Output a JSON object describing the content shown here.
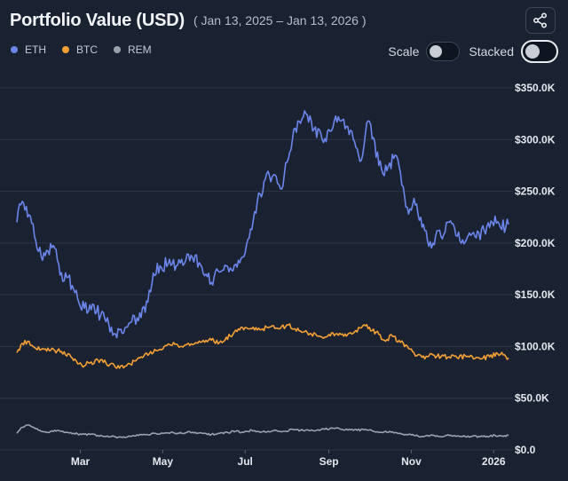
{
  "header": {
    "title": "Portfolio Value (USD)",
    "date_range": "( Jan 13, 2025 – Jan 13, 2026 )"
  },
  "share_icon": "share-icon",
  "legend": [
    {
      "label": "ETH",
      "color": "#6b86ea"
    },
    {
      "label": "BTC",
      "color": "#f5a035"
    },
    {
      "label": "REM",
      "color": "#9aa1ad"
    }
  ],
  "controls": {
    "scale_label": "Scale",
    "stacked_label": "Stacked"
  },
  "chart_data": {
    "type": "line",
    "title": "Portfolio Value (USD)",
    "xlabel": "",
    "ylabel": "",
    "x_range": [
      "2025-01-13",
      "2026-01-13"
    ],
    "ylim": [
      0,
      350000
    ],
    "y_ticks": [
      {
        "value": 0,
        "label": "$0.0"
      },
      {
        "value": 50000,
        "label": "$50.0K"
      },
      {
        "value": 100000,
        "label": "$100.0K"
      },
      {
        "value": 150000,
        "label": "$150.0K"
      },
      {
        "value": 200000,
        "label": "$200.0K"
      },
      {
        "value": 250000,
        "label": "$250.0K"
      },
      {
        "value": 300000,
        "label": "$300.0K"
      },
      {
        "value": 350000,
        "label": "$350.0K"
      }
    ],
    "x_ticks": [
      {
        "value": 47,
        "label": "Mar"
      },
      {
        "value": 108,
        "label": "May"
      },
      {
        "value": 169,
        "label": "Jul"
      },
      {
        "value": 231,
        "label": "Sep"
      },
      {
        "value": 292,
        "label": "Nov"
      },
      {
        "value": 353,
        "label": "2026"
      }
    ],
    "x_unit": "days since Jan 13, 2025",
    "series": [
      {
        "name": "ETH",
        "color": "#6b86ea",
        "points": [
          [
            0,
            220000
          ],
          [
            3,
            237000
          ],
          [
            6,
            232000
          ],
          [
            10,
            226000
          ],
          [
            14,
            202000
          ],
          [
            18,
            187000
          ],
          [
            22,
            193000
          ],
          [
            28,
            195000
          ],
          [
            34,
            163000
          ],
          [
            38,
            167000
          ],
          [
            45,
            146000
          ],
          [
            50,
            137000
          ],
          [
            56,
            141000
          ],
          [
            62,
            130000
          ],
          [
            68,
            122000
          ],
          [
            73,
            112000
          ],
          [
            80,
            118000
          ],
          [
            85,
            124000
          ],
          [
            92,
            128000
          ],
          [
            97,
            143000
          ],
          [
            101,
            171000
          ],
          [
            106,
            178000
          ],
          [
            112,
            180000
          ],
          [
            118,
            178000
          ],
          [
            125,
            183000
          ],
          [
            130,
            186000
          ],
          [
            135,
            181000
          ],
          [
            140,
            170000
          ],
          [
            144,
            162000
          ],
          [
            150,
            172000
          ],
          [
            155,
            178000
          ],
          [
            160,
            173000
          ],
          [
            166,
            185000
          ],
          [
            172,
            205000
          ],
          [
            178,
            240000
          ],
          [
            184,
            262000
          ],
          [
            190,
            266000
          ],
          [
            196,
            252000
          ],
          [
            200,
            278000
          ],
          [
            204,
            300000
          ],
          [
            208,
            318000
          ],
          [
            214,
            325000
          ],
          [
            220,
            310000
          ],
          [
            226,
            300000
          ],
          [
            232,
            308000
          ],
          [
            238,
            322000
          ],
          [
            244,
            313000
          ],
          [
            250,
            298000
          ],
          [
            255,
            280000
          ],
          [
            260,
            318000
          ],
          [
            264,
            302000
          ],
          [
            268,
            275000
          ],
          [
            274,
            270000
          ],
          [
            280,
            285000
          ],
          [
            284,
            268000
          ],
          [
            290,
            228000
          ],
          [
            294,
            243000
          ],
          [
            298,
            222000
          ],
          [
            304,
            202000
          ],
          [
            308,
            200000
          ],
          [
            312,
            212000
          ],
          [
            316,
            208000
          ],
          [
            320,
            220000
          ],
          [
            324,
            215000
          ],
          [
            328,
            202000
          ],
          [
            334,
            207000
          ],
          [
            340,
            205000
          ],
          [
            346,
            212000
          ],
          [
            350,
            215000
          ],
          [
            354,
            226000
          ],
          [
            358,
            215000
          ],
          [
            364,
            218000
          ]
        ]
      },
      {
        "name": "BTC",
        "color": "#f5a035",
        "points": [
          [
            0,
            94000
          ],
          [
            4,
            103000
          ],
          [
            8,
            105000
          ],
          [
            12,
            100000
          ],
          [
            18,
            97000
          ],
          [
            24,
            96000
          ],
          [
            30,
            96000
          ],
          [
            36,
            92000
          ],
          [
            40,
            90000
          ],
          [
            44,
            86000
          ],
          [
            48,
            82000
          ],
          [
            54,
            84000
          ],
          [
            60,
            87000
          ],
          [
            66,
            84000
          ],
          [
            72,
            82000
          ],
          [
            76,
            79000
          ],
          [
            82,
            83000
          ],
          [
            88,
            86000
          ],
          [
            92,
            90000
          ],
          [
            98,
            93000
          ],
          [
            104,
            96000
          ],
          [
            110,
            101000
          ],
          [
            116,
            104000
          ],
          [
            122,
            100000
          ],
          [
            128,
            101000
          ],
          [
            136,
            104000
          ],
          [
            144,
            106000
          ],
          [
            150,
            104000
          ],
          [
            158,
            110000
          ],
          [
            164,
            117000
          ],
          [
            170,
            118000
          ],
          [
            176,
            116000
          ],
          [
            182,
            117000
          ],
          [
            188,
            119000
          ],
          [
            194,
            117000
          ],
          [
            200,
            121000
          ],
          [
            206,
            117000
          ],
          [
            212,
            114000
          ],
          [
            218,
            112000
          ],
          [
            224,
            110000
          ],
          [
            230,
            110000
          ],
          [
            236,
            112000
          ],
          [
            242,
            110000
          ],
          [
            248,
            112000
          ],
          [
            254,
            118000
          ],
          [
            258,
            120000
          ],
          [
            262,
            115000
          ],
          [
            266,
            114000
          ],
          [
            272,
            106000
          ],
          [
            278,
            110000
          ],
          [
            284,
            104000
          ],
          [
            290,
            98000
          ],
          [
            296,
            91000
          ],
          [
            302,
            88000
          ],
          [
            308,
            92000
          ],
          [
            314,
            90000
          ],
          [
            320,
            90000
          ],
          [
            326,
            89000
          ],
          [
            332,
            91000
          ],
          [
            338,
            88000
          ],
          [
            344,
            88000
          ],
          [
            350,
            90000
          ],
          [
            356,
            93000
          ],
          [
            360,
            92000
          ],
          [
            364,
            89000
          ]
        ]
      },
      {
        "name": "REM",
        "color": "#9aa1ad",
        "points": [
          [
            0,
            16000
          ],
          [
            4,
            22000
          ],
          [
            8,
            24000
          ],
          [
            12,
            22000
          ],
          [
            18,
            18000
          ],
          [
            24,
            17000
          ],
          [
            30,
            19000
          ],
          [
            36,
            17000
          ],
          [
            42,
            16000
          ],
          [
            48,
            15000
          ],
          [
            54,
            15000
          ],
          [
            60,
            14000
          ],
          [
            66,
            13000
          ],
          [
            72,
            13000
          ],
          [
            78,
            12000
          ],
          [
            84,
            13000
          ],
          [
            90,
            14000
          ],
          [
            96,
            15000
          ],
          [
            102,
            16000
          ],
          [
            108,
            16000
          ],
          [
            114,
            17000
          ],
          [
            120,
            16000
          ],
          [
            126,
            17000
          ],
          [
            132,
            17000
          ],
          [
            138,
            16000
          ],
          [
            144,
            15000
          ],
          [
            150,
            16000
          ],
          [
            156,
            17000
          ],
          [
            162,
            18000
          ],
          [
            168,
            17000
          ],
          [
            174,
            19000
          ],
          [
            180,
            17000
          ],
          [
            186,
            18000
          ],
          [
            192,
            19000
          ],
          [
            198,
            18000
          ],
          [
            204,
            20000
          ],
          [
            210,
            19000
          ],
          [
            216,
            19000
          ],
          [
            222,
            19000
          ],
          [
            228,
            20000
          ],
          [
            234,
            21000
          ],
          [
            240,
            20000
          ],
          [
            246,
            20000
          ],
          [
            252,
            19000
          ],
          [
            258,
            20000
          ],
          [
            264,
            18000
          ],
          [
            270,
            17000
          ],
          [
            276,
            18000
          ],
          [
            282,
            16000
          ],
          [
            288,
            15000
          ],
          [
            294,
            14000
          ],
          [
            300,
            13000
          ],
          [
            306,
            14000
          ],
          [
            312,
            13000
          ],
          [
            318,
            14000
          ],
          [
            324,
            14000
          ],
          [
            330,
            13000
          ],
          [
            336,
            13000
          ],
          [
            342,
            13000
          ],
          [
            348,
            13000
          ],
          [
            354,
            14000
          ],
          [
            360,
            13000
          ],
          [
            364,
            14000
          ]
        ]
      }
    ]
  }
}
